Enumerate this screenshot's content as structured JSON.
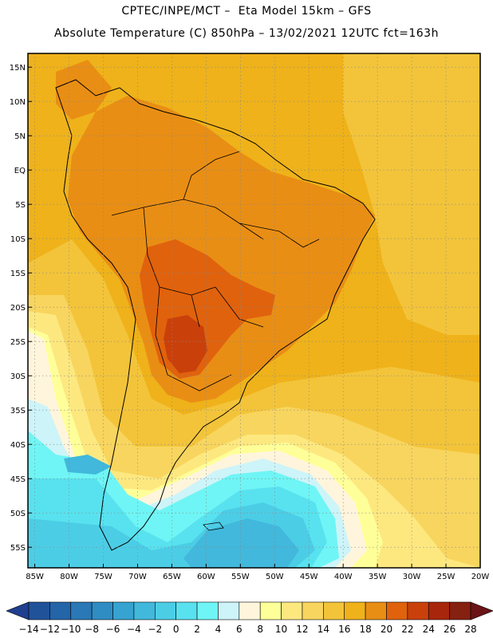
{
  "header": {
    "line1": "CPTEC/INPE/MCT –  Eta Model 15km – GFS",
    "line2": "Absolute Temperature (C) 850hPa – 13/02/2021 12UTC fct=163h"
  },
  "map": {
    "lat_labels": [
      "15N",
      "10N",
      "5N",
      "EQ",
      "5S",
      "10S",
      "15S",
      "20S",
      "25S",
      "30S",
      "35S",
      "40S",
      "45S",
      "50S",
      "55S"
    ],
    "lon_labels": [
      "85W",
      "80W",
      "75W",
      "70W",
      "65W",
      "60W",
      "55W",
      "50W",
      "45W",
      "40W",
      "35W",
      "30W",
      "25W",
      "20W"
    ],
    "lat_range": [
      17,
      -58
    ],
    "lon_range": [
      -86,
      -20
    ]
  },
  "colorbar": {
    "labels": [
      "-14",
      "-12",
      "-10",
      "-8",
      "-6",
      "-4",
      "-2",
      "0",
      "2",
      "4",
      "6",
      "8",
      "10",
      "12",
      "14",
      "16",
      "18",
      "20",
      "22",
      "24",
      "26",
      "28"
    ],
    "colors": [
      "#1f3f8f",
      "#20529a",
      "#2365a8",
      "#2a78b6",
      "#2f8dc4",
      "#36a3d1",
      "#41b8dc",
      "#4ccde6",
      "#58e2ef",
      "#6ff5f5",
      "#cdf4f8",
      "#fff5dc",
      "#ffff99",
      "#fde880",
      "#f8d55e",
      "#f3c43a",
      "#efb21a",
      "#e98e14",
      "#e0620d",
      "#c9400b",
      "#a8260b",
      "#862010",
      "#6b1418"
    ]
  }
}
